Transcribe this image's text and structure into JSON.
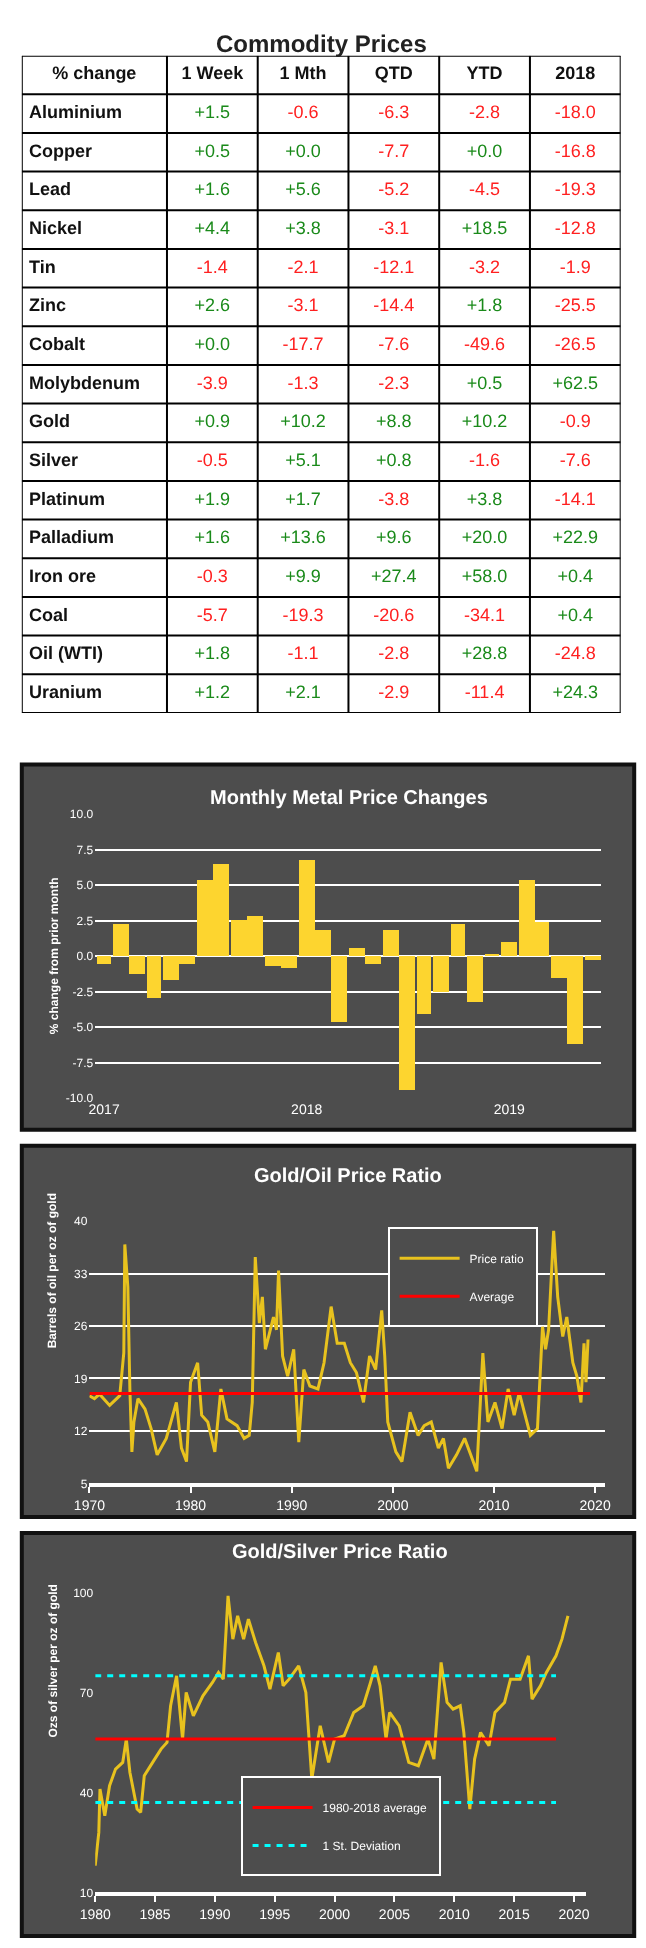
{
  "chart_data": [
    {
      "type": "heatmap",
      "title": "Commodity Prices",
      "ylabel": "% change",
      "categories": [
        "1 Week",
        "1 Mth",
        "QTD",
        "YTD",
        "2018"
      ],
      "y_categories": [
        "Aluminium",
        "Copper",
        "Lead",
        "Nickel",
        "Tin",
        "Zinc",
        "Cobalt",
        "Molybdenum",
        "Gold",
        "Silver",
        "Platinum",
        "Palladium",
        "Iron ore",
        "Coal",
        "Oil (WTI)",
        "Uranium"
      ],
      "cells": [
        [
          1.5,
          -0.6,
          -6.3,
          -2.8,
          -18.0
        ],
        [
          0.5,
          0.0,
          -7.7,
          0.0,
          -16.8
        ],
        [
          1.6,
          5.6,
          -5.2,
          -4.5,
          -19.3
        ],
        [
          4.4,
          3.8,
          -3.1,
          18.5,
          -12.8
        ],
        [
          -1.4,
          -2.1,
          -12.1,
          -3.2,
          -1.9
        ],
        [
          2.6,
          -3.1,
          -14.4,
          1.8,
          -25.5
        ],
        [
          0.0,
          -17.7,
          -7.6,
          -49.6,
          -26.5
        ],
        [
          -3.9,
          -1.3,
          -2.3,
          0.5,
          62.5
        ],
        [
          0.9,
          10.2,
          8.8,
          10.2,
          -0.9
        ],
        [
          -0.5,
          5.1,
          0.8,
          -1.6,
          -7.6
        ],
        [
          1.9,
          1.7,
          -3.8,
          3.8,
          -14.1
        ],
        [
          1.6,
          13.6,
          9.6,
          20.0,
          22.9
        ],
        [
          -0.3,
          9.9,
          27.4,
          58.0,
          0.4
        ],
        [
          -5.7,
          -19.3,
          -20.6,
          -34.1,
          0.4
        ],
        [
          1.8,
          -1.1,
          -2.8,
          28.8,
          -24.8
        ],
        [
          1.2,
          2.1,
          -2.9,
          -11.4,
          24.3
        ]
      ],
      "cell_labels": [
        [
          "+1.5",
          "-0.6",
          "-6.3",
          "-2.8",
          "-18.0"
        ],
        [
          "+0.5",
          "+0.0",
          "-7.7",
          "+0.0",
          "-16.8"
        ],
        [
          "+1.6",
          "+5.6",
          "-5.2",
          "-4.5",
          "-19.3"
        ],
        [
          "+4.4",
          "+3.8",
          "-3.1",
          "+18.5",
          "-12.8"
        ],
        [
          "-1.4",
          "-2.1",
          "-12.1",
          "-3.2",
          "-1.9"
        ],
        [
          "+2.6",
          "-3.1",
          "-14.4",
          "+1.8",
          "-25.5"
        ],
        [
          "+0.0",
          "-17.7",
          "-7.6",
          "-49.6",
          "-26.5"
        ],
        [
          "-3.9",
          "-1.3",
          "-2.3",
          "+0.5",
          "+62.5"
        ],
        [
          "+0.9",
          "+10.2",
          "+8.8",
          "+10.2",
          "-0.9"
        ],
        [
          "-0.5",
          "+5.1",
          "+0.8",
          "-1.6",
          "-7.6"
        ],
        [
          "+1.9",
          "+1.7",
          "-3.8",
          "+3.8",
          "-14.1"
        ],
        [
          "+1.6",
          "+13.6",
          "+9.6",
          "+20.0",
          "+22.9"
        ],
        [
          "-0.3",
          "+9.9",
          "+27.4",
          "+58.0",
          "+0.4"
        ],
        [
          "-5.7",
          "-19.3",
          "-20.6",
          "-34.1",
          "+0.4"
        ],
        [
          "+1.8",
          "-1.1",
          "-2.8",
          "+28.8",
          "-24.8"
        ],
        [
          "+1.2",
          "+2.1",
          "-2.9",
          "-11.4",
          "+24.3"
        ]
      ]
    },
    {
      "type": "bar",
      "title": "Monthly Metal Price Changes",
      "ylabel": "% change from prior month",
      "color": "#fdd52f",
      "x": [
        "2017-01",
        "2017-02",
        "2017-03",
        "2017-04",
        "2017-05",
        "2017-06",
        "2017-07",
        "2017-08",
        "2017-09",
        "2017-10",
        "2017-11",
        "2017-12",
        "2018-01",
        "2018-02",
        "2018-03",
        "2018-04",
        "2018-05",
        "2018-06",
        "2018-07",
        "2018-08",
        "2018-09",
        "2018-10",
        "2018-11",
        "2018-12",
        "2019-01",
        "2019-02",
        "2019-03",
        "2019-04",
        "2019-05",
        "2019-06"
      ],
      "values": [
        -0.5,
        2.3,
        -1.2,
        -3.0,
        -1.7,
        -0.6,
        5.4,
        6.5,
        2.5,
        2.8,
        -0.7,
        -0.9,
        6.7,
        1.9,
        -4.6,
        0.5,
        -0.6,
        1.9,
        -9.4,
        -4.1,
        -2.6,
        2.2,
        -3.3,
        0.1,
        1.0,
        5.3,
        2.4,
        -1.5,
        -6.2,
        -0.3
      ],
      "xlim": [
        "2016-12-16",
        "2019-06-16"
      ],
      "xticks": [
        "2017",
        "2018",
        "2019"
      ],
      "ylim": [
        -10,
        10
      ],
      "yticks": [
        {
          "value": -10,
          "label": "-10.0"
        },
        {
          "value": -7.5,
          "label": "-7.5"
        },
        {
          "value": -5,
          "label": "-5.0"
        },
        {
          "value": -2.5,
          "label": "-2.5"
        },
        {
          "value": 0,
          "label": "0.0"
        },
        {
          "value": 2.5,
          "label": "2.5"
        },
        {
          "value": 5,
          "label": "5.0"
        },
        {
          "value": 7.5,
          "label": "7.5"
        },
        {
          "value": 10,
          "label": "10.0"
        }
      ],
      "grid": "y"
    },
    {
      "type": "line",
      "title": "Gold/Oil Price Ratio",
      "ylabel": "Barrels of oil per oz of gold",
      "legend": "top right",
      "grid": "y",
      "xlim": [
        1970,
        2021
      ],
      "xticks": [
        1970,
        1980,
        1990,
        2000,
        2010,
        2020
      ],
      "ylim": [
        5,
        40
      ],
      "yticks": [
        5,
        12,
        19,
        26,
        33,
        40
      ],
      "series": [
        {
          "name": "Price ratio",
          "color": "#e8c21e",
          "x": [
            1970,
            1970.5,
            1971,
            1972,
            1973,
            1973.4,
            1973.5,
            1973.8,
            1974,
            1974.2,
            1974.4,
            1974.8,
            1975.5,
            1976.1,
            1976.7,
            1977.6,
            1978.6,
            1979.1,
            1979.6,
            1980,
            1980.7,
            1981.1,
            1981.7,
            1982.4,
            1983,
            1983.6,
            1984.6,
            1985.3,
            1985.8,
            1986.1,
            1986.4,
            1986.8,
            1987.1,
            1987.4,
            1988.2,
            1988.5,
            1988.7,
            1989.1,
            1989.6,
            1990.2,
            1990.7,
            1991.2,
            1991.8,
            1992.6,
            1993.2,
            1993.9,
            1994.5,
            1995.2,
            1995.8,
            1996.4,
            1997.1,
            1997.7,
            1998.3,
            1998.9,
            1999.2,
            1999.5,
            2000.3,
            2000.9,
            2001.7,
            2002.5,
            2003.1,
            2003.8,
            2004.5,
            2005,
            2005.5,
            2006.3,
            2007.1,
            2007.7,
            2008.3,
            2008.9,
            2009.4,
            2010.1,
            2010.8,
            2011.4,
            2012,
            2012.5,
            2013,
            2013.6,
            2014.3,
            2014.8,
            2015.1,
            2015.4,
            2015.9,
            2016.3,
            2016.8,
            2017.2,
            2017.8,
            2018.2,
            2018.6,
            2018.9,
            2019.1,
            2019.3
          ],
          "values": [
            16.7,
            16.3,
            16.9,
            15.4,
            16.7,
            22.4,
            36.9,
            31.2,
            17.6,
            9.2,
            13.2,
            16.3,
            14.9,
            12.3,
            8.8,
            11,
            15.8,
            9.7,
            7.9,
            18.5,
            21.1,
            14.1,
            13.2,
            9.2,
            17.6,
            13.6,
            12.7,
            11,
            11.4,
            15.8,
            35.2,
            26.4,
            29.9,
            22.9,
            27.2,
            25.5,
            33.4,
            22,
            19.3,
            22.9,
            10.5,
            20.2,
            18,
            17.6,
            21.1,
            28.6,
            23.7,
            23.7,
            21.1,
            19.8,
            15.8,
            22,
            20.2,
            28.1,
            22,
            13.2,
            9.2,
            7.9,
            14.5,
            11.4,
            12.7,
            13.2,
            9.7,
            11,
            7,
            8.8,
            11,
            8.8,
            6.6,
            22.4,
            13.2,
            15.8,
            12.3,
            17.6,
            14.1,
            17.1,
            14.5,
            11.4,
            12.3,
            25.9,
            22.9,
            25.5,
            38.7,
            29.9,
            24.6,
            27.2,
            21.1,
            19.3,
            15.8,
            23.7,
            18.5,
            24.2
          ]
        },
        {
          "name": "Average",
          "color": "#ff0000",
          "x": [
            1970,
            2019.5
          ],
          "values": [
            17,
            17
          ]
        }
      ]
    },
    {
      "type": "line",
      "title": "Gold/Silver Price Ratio",
      "ylabel": "Ozs of silver per oz of gold",
      "legend": "bottom",
      "xlim": [
        1980,
        2021
      ],
      "xticks": [
        1980,
        1985,
        1990,
        1995,
        2000,
        2005,
        2010,
        2015,
        2020
      ],
      "ylim": [
        10,
        100
      ],
      "yticks": [
        10,
        40,
        70,
        100
      ],
      "series": [
        {
          "color": "#e8c21e",
          "x": [
            1980,
            1980.3,
            1980.4,
            1980.8,
            1981.2,
            1981.7,
            1982.3,
            1982.6,
            1982.9,
            1983.5,
            1983.8,
            1984.1,
            1984.8,
            1985.5,
            1986,
            1986.3,
            1986.8,
            1987.3,
            1987.6,
            1988.2,
            1989,
            1989.8,
            1990.3,
            1990.7,
            1991.1,
            1991.5,
            1991.9,
            1992.4,
            1992.8,
            1993.4,
            1994.1,
            1994.6,
            1995.3,
            1995.7,
            1996.2,
            1997,
            1997.6,
            1998.1,
            1998.8,
            1999.5,
            2000,
            2000.8,
            2001.6,
            2002.4,
            2003,
            2003.4,
            2003.8,
            2004.3,
            2004.6,
            2005.4,
            2006.2,
            2007,
            2007.8,
            2008.3,
            2008.9,
            2009.4,
            2009.9,
            2010.5,
            2010.8,
            2011.3,
            2011.7,
            2012.2,
            2012.9,
            2013.4,
            2014.2,
            2014.7,
            2015.5,
            2016.2,
            2016.5,
            2017.2,
            2017.7,
            2018.5,
            2019,
            2019.5
          ],
          "values": [
            18,
            28,
            41,
            33,
            42,
            47,
            49,
            56,
            46,
            35,
            34,
            45,
            49,
            53,
            55,
            66,
            75,
            56,
            70,
            63,
            69,
            73,
            76,
            74,
            99,
            86,
            93,
            86,
            92,
            85,
            78,
            71,
            82,
            72,
            74,
            78,
            70,
            44,
            60,
            49,
            56,
            57,
            64,
            66,
            73,
            78,
            72,
            56,
            64,
            60,
            49,
            48,
            56,
            50,
            79,
            67,
            65,
            66,
            58,
            35,
            50,
            58,
            54,
            64,
            67,
            74,
            74,
            81,
            68,
            72,
            76,
            81,
            86,
            93
          ]
        },
        {
          "name": "1980-2018 average",
          "color": "#ff0000",
          "x": [
            1980,
            2018.5
          ],
          "values": [
            56,
            56
          ]
        },
        {
          "name": "1 St. Deviation",
          "color": "#00ffff",
          "line_style": "dotted",
          "x": [
            1980,
            2018.5
          ],
          "values": [
            75,
            75
          ]
        },
        {
          "color": "#00ffff",
          "line_style": "dotted",
          "x": [
            1980,
            2018.5
          ],
          "values": [
            37,
            37
          ]
        }
      ]
    }
  ]
}
